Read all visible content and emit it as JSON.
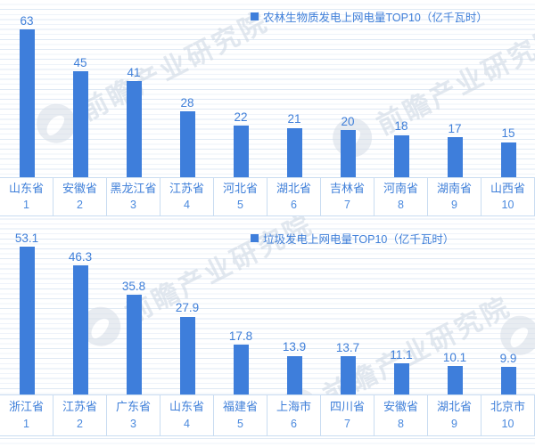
{
  "watermark": {
    "text": "前瞻产业研究院",
    "logo": "qianzhan-swoosh-logo"
  },
  "colors": {
    "bar": "#3E7EDB",
    "blue_text": "#3F7FD9",
    "grid_line": "#DFE9F4",
    "table_border": "#C9DCF1",
    "watermark": "#CCD6E3"
  },
  "chart_data": [
    {
      "type": "bar",
      "title": "农林生物质发电上网电量TOP10（亿千瓦时）",
      "legend": "农林生物质发电上网电量TOP10（亿千瓦时）",
      "legend_position": "top-center",
      "grid": true,
      "value_labels": true,
      "categories": [
        "山东省",
        "安徽省",
        "黑龙江省",
        "江苏省",
        "河北省",
        "湖北省",
        "吉林省",
        "河南省",
        "湖南省",
        "山西省"
      ],
      "ranks": [
        "1",
        "2",
        "3",
        "4",
        "5",
        "6",
        "7",
        "8",
        "9",
        "10"
      ],
      "values": [
        63,
        45,
        41,
        28,
        22,
        21,
        20,
        18,
        17,
        15
      ],
      "xlabel": "",
      "ylabel": "",
      "ylim": [
        0,
        68
      ]
    },
    {
      "type": "bar",
      "title": "垃圾发电上网电量TOP10（亿千瓦时）",
      "legend": "垃圾发电上网电量TOP10（亿千瓦时）",
      "legend_position": "top-center",
      "grid": true,
      "value_labels": true,
      "categories": [
        "浙江省",
        "江苏省",
        "广东省",
        "山东省",
        "福建省",
        "上海市",
        "四川省",
        "安徽省",
        "湖北省",
        "北京市"
      ],
      "ranks": [
        "1",
        "2",
        "3",
        "4",
        "5",
        "6",
        "7",
        "8",
        "9",
        "10"
      ],
      "values": [
        53.1,
        46.3,
        35.8,
        27.9,
        17.8,
        13.9,
        13.7,
        11.1,
        10.1,
        9.9
      ],
      "xlabel": "",
      "ylabel": "",
      "ylim": [
        0,
        57
      ]
    }
  ]
}
